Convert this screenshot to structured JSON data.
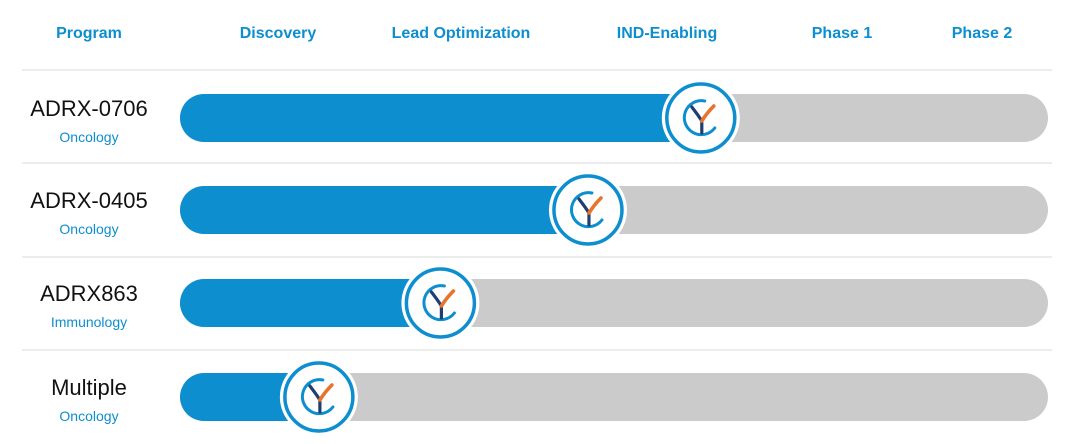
{
  "chart_data": {
    "type": "bar",
    "title": "",
    "stages": [
      "Discovery",
      "Lead Optimization",
      "IND-Enabling",
      "Phase 1",
      "Phase 2"
    ],
    "program_column_label": "Program",
    "value_unit": "fraction of pipeline",
    "xlim": [
      0,
      1
    ],
    "programs": [
      {
        "name": "ADRX-0706",
        "area": "Oncology",
        "progress": 0.6
      },
      {
        "name": "ADRX-0405",
        "area": "Oncology",
        "progress": 0.47
      },
      {
        "name": "ADRX863",
        "area": "Immunology",
        "progress": 0.3
      },
      {
        "name": "Multiple",
        "area": "Oncology",
        "progress": 0.16
      }
    ],
    "grid": true,
    "legend": "none"
  },
  "colors": {
    "accent": "#0d8ecf",
    "bar_fill": "#0d8ecf",
    "track": "#cbcbcb",
    "divider": "#d9d9d9",
    "program_name": "#111111",
    "marker_orange": "#e8732c",
    "marker_dark": "#1f3f73"
  },
  "icons": {
    "marker": "company-logo-icon"
  }
}
